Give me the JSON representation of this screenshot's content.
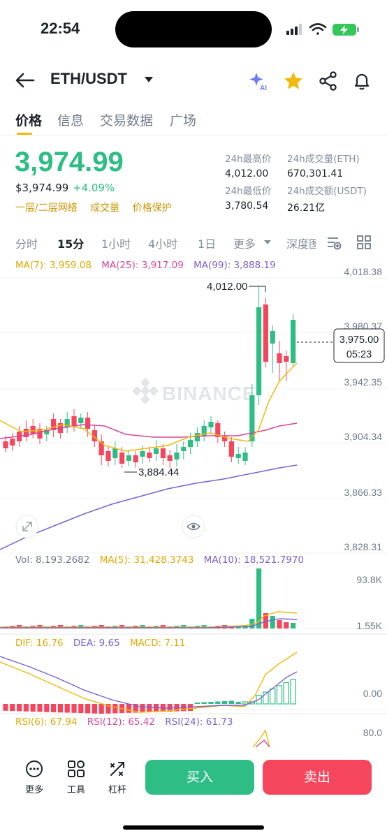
{
  "status": {
    "time": "22:54"
  },
  "header": {
    "pair": "ETH/USDT"
  },
  "tabs": [
    "价格",
    "信息",
    "交易数据",
    "广场"
  ],
  "price": {
    "last": "3,974.99",
    "usd": "$3,974.99",
    "change": "+4.09%"
  },
  "tags": [
    "一层/二层网络",
    "成交量",
    "价格保护"
  ],
  "stats": {
    "high_label": "24h最高价",
    "high": "4,012.00",
    "vol_eth_label": "24h成交量(ETH)",
    "vol_eth": "670,301.41",
    "low_label": "24h最低价",
    "low": "3,780.54",
    "vol_usdt_label": "24h成交额(USDT)",
    "vol_usdt": "26.21亿"
  },
  "intervals": [
    "分时",
    "15分",
    "1小时",
    "4小时",
    "1日",
    "更多",
    "深度图"
  ],
  "ma": {
    "ma7": "MA(7): 3,959.08",
    "ma25": "MA(25): 3,917.09",
    "ma99": "MA(99): 3,888.19"
  },
  "chart_axis": [
    "4,018.38",
    "3,980.37",
    "3,942.35",
    "3,904.34",
    "3,866.33",
    "3,828.31"
  ],
  "chart_labels": {
    "high": "4,012.00",
    "low": "3,884.44",
    "current_price": "3,975.00",
    "countdown": "05:23",
    "watermark": "BINANCE"
  },
  "volume": {
    "vol": "Vol: 8,193.2682",
    "ma5": "MA(5): 31,428.3743",
    "ma10": "MA(10): 18,521.7970",
    "axis_top": "93.8K",
    "axis_bottom": "1.55K"
  },
  "macd": {
    "dif": "DIF: 16.76",
    "dea": "DEA: 9.65",
    "macd": "MACD: 7.11",
    "axis_zero": "0.00"
  },
  "rsi": {
    "rsi6": "RSI(6): 67.94",
    "rsi12": "RSI(12): 65.42",
    "rsi24": "RSI(24): 61.73",
    "axis": "80.0"
  },
  "bottom": {
    "more": "更多",
    "tools": "工具",
    "leverage": "杠杆",
    "buy": "买入",
    "sell": "卖出"
  },
  "colors": {
    "up": "#2ebd85",
    "down": "#f6465d",
    "accent": "#f0b90b",
    "ma7": "#f0b90b",
    "ma25": "#d6479b",
    "ma99": "#7b61d3"
  }
}
